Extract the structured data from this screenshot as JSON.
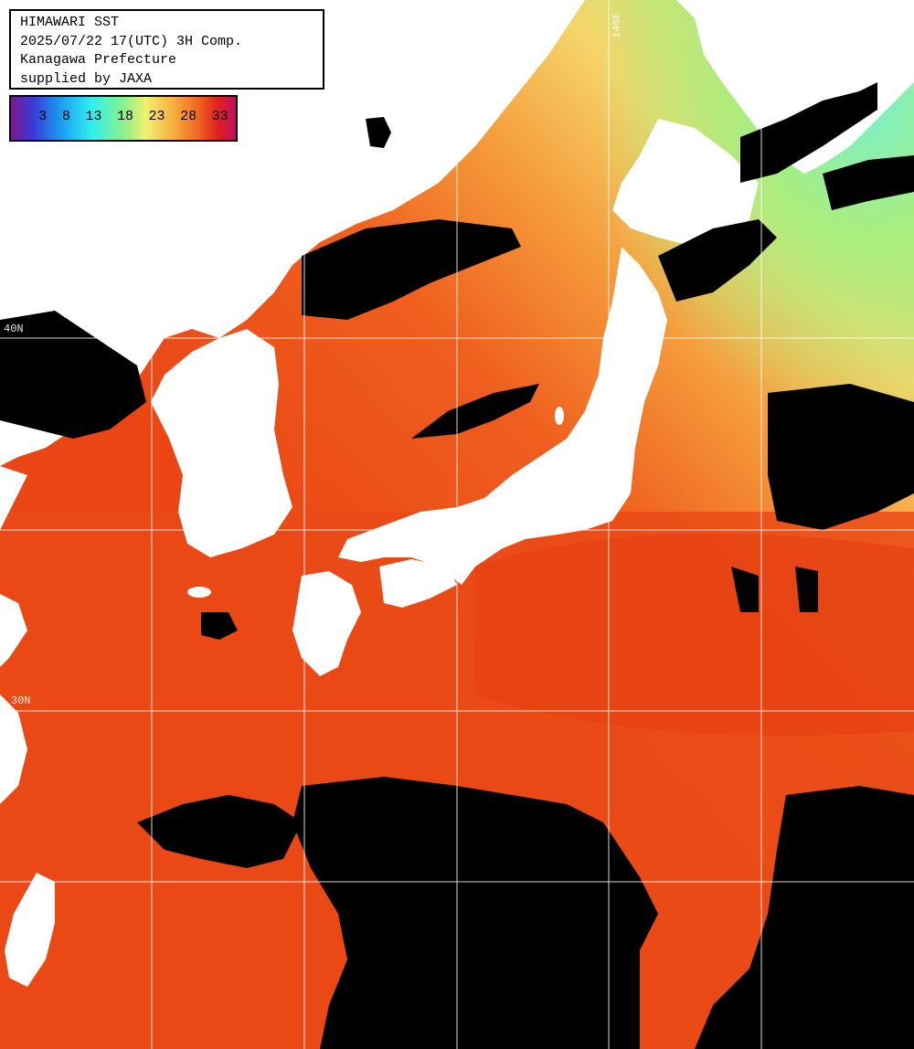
{
  "header": {
    "line1": "HIMAWARI SST",
    "line2": "2025/07/22 17(UTC) 3H Comp.",
    "line3": "Kanagawa Prefecture",
    "line4": "supplied by JAXA"
  },
  "scale": {
    "labels": [
      "3",
      "8",
      "13",
      "18",
      "23",
      "28",
      "33"
    ],
    "colors": [
      "#7a1a8a",
      "#3a3ad8",
      "#1a9cf0",
      "#30f0f0",
      "#8af08a",
      "#f0f070",
      "#f8b040",
      "#f06020",
      "#e02020",
      "#c01060"
    ]
  },
  "grid": {
    "lon_label": "140E",
    "lat_label_north": "40N",
    "lat_label_south": "30N"
  },
  "colors": {
    "land": "#ffffff",
    "cloud": "#000000",
    "warm_sea": "#ec4a16",
    "mid_sea": "#f57a2a",
    "cool_sea": "#f2c45a",
    "cold_sea": "#a8e878",
    "grid": "#ffffff"
  }
}
